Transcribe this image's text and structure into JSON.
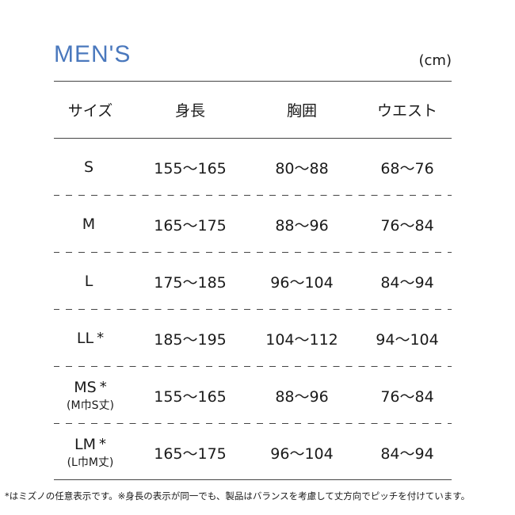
{
  "title": "MEN'S",
  "unit": "(cm)",
  "headers": [
    "サイズ",
    "身長",
    "胸囲",
    "ウエスト"
  ],
  "rows": [
    {
      "size": "S",
      "sub": "",
      "mark": "",
      "height": "155〜165",
      "chest": "80〜88",
      "waist": "68〜76"
    },
    {
      "size": "M",
      "sub": "",
      "mark": "",
      "height": "165〜175",
      "chest": "88〜96",
      "waist": "76〜84"
    },
    {
      "size": "L",
      "sub": "",
      "mark": "",
      "height": "175〜185",
      "chest": "96〜104",
      "waist": "84〜94"
    },
    {
      "size": "LL",
      "sub": "",
      "mark": "*",
      "height": "185〜195",
      "chest": "104〜112",
      "waist": "94〜104"
    },
    {
      "size": "MS",
      "sub": "(M巾S丈)",
      "mark": "*",
      "height": "155〜165",
      "chest": "88〜96",
      "waist": "76〜84"
    },
    {
      "size": "LM",
      "sub": "(L巾M丈)",
      "mark": "*",
      "height": "165〜175",
      "chest": "96〜104",
      "waist": "84〜94"
    }
  ],
  "footnote": "*はミズノの任意表示です。※身長の表示が同一でも、製品はバランスを考慮して丈方向でピッチを付けています。"
}
